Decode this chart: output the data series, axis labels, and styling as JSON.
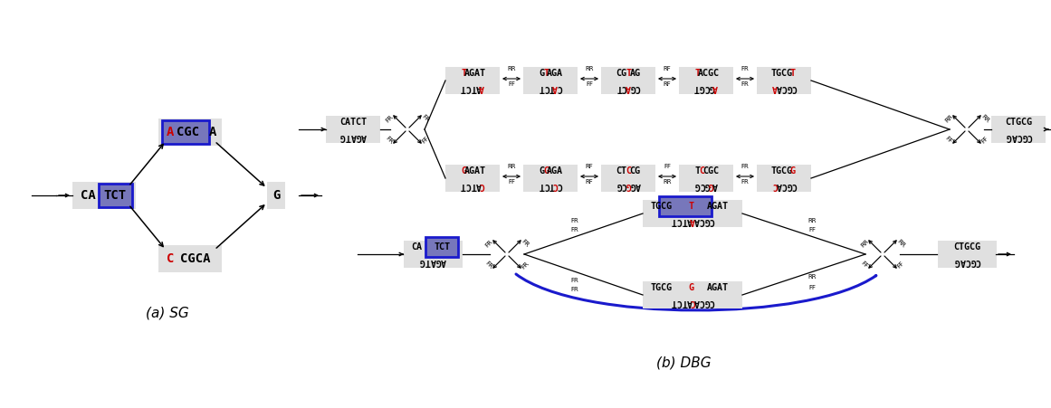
{
  "fig_width": 11.61,
  "fig_height": 4.51,
  "bg": "#ffffff",
  "blk": "#000000",
  "red": "#cc0000",
  "blu": "#1a1acc",
  "node_bg": "#e0e0e0",
  "node_bg2": "#cccccc",
  "sg_label": "(a) SG",
  "dbg_label": "(b) DBG",
  "upper_top_seqs": [
    [
      "T",
      "AGAT",
      "ATCT",
      "A"
    ],
    [
      "G",
      "T",
      "AGA",
      "TCT",
      "A",
      "C"
    ],
    [
      "CG",
      "T",
      "AG",
      "CT",
      "A",
      "CG"
    ],
    [
      "T",
      "ACGC",
      "GCGT",
      "A"
    ],
    [
      "TGCG",
      "T",
      "A",
      "CGCA"
    ]
  ],
  "upper_bot_seqs": [
    [
      "G",
      "AGAT",
      "ATCT",
      "C"
    ],
    [
      "G",
      "G",
      "AGA",
      "TCT",
      "C",
      "C"
    ],
    [
      "CT",
      "C",
      "CG",
      "CG",
      "G",
      "AG"
    ],
    [
      "T",
      "C",
      "CGC",
      "GCG",
      "G",
      "A"
    ],
    [
      "TGCG",
      "G",
      "C",
      "CGCA"
    ]
  ],
  "upper_top_edge_labels": [
    [
      "RR",
      "FF"
    ],
    [
      "RR",
      "FF"
    ],
    [
      "RF",
      "RF"
    ],
    [
      "FR",
      "FR"
    ]
  ],
  "upper_bot_edge_labels": [
    [
      "RR",
      "FF"
    ],
    [
      "RF",
      "RF"
    ],
    [
      "FF",
      "RR"
    ],
    [
      "FR",
      "FR"
    ]
  ]
}
